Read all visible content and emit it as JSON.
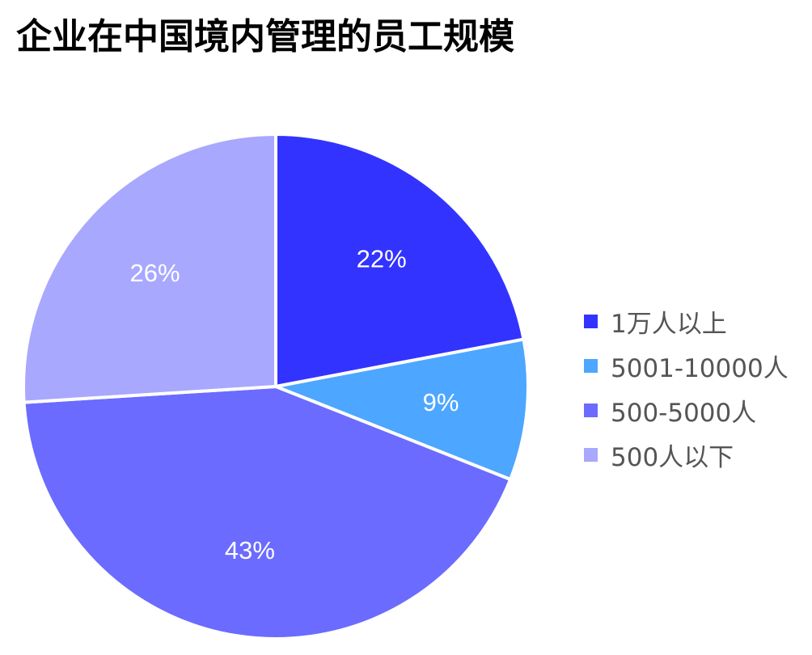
{
  "chart_data": {
    "type": "pie",
    "title": "企业在中国境内管理的员工规模",
    "categories": [
      "1万人以上",
      "5001-10000人",
      "500-5000人",
      "500人以下"
    ],
    "values": [
      22,
      9,
      43,
      26
    ],
    "value_labels": [
      "22%",
      "9%",
      "43%",
      "26%"
    ],
    "colors": [
      "#3333ff",
      "#4da6ff",
      "#6b6bff",
      "#a8a8ff"
    ],
    "start_angle": "12 o'clock",
    "direction": "clockwise",
    "legend_position": "right"
  }
}
